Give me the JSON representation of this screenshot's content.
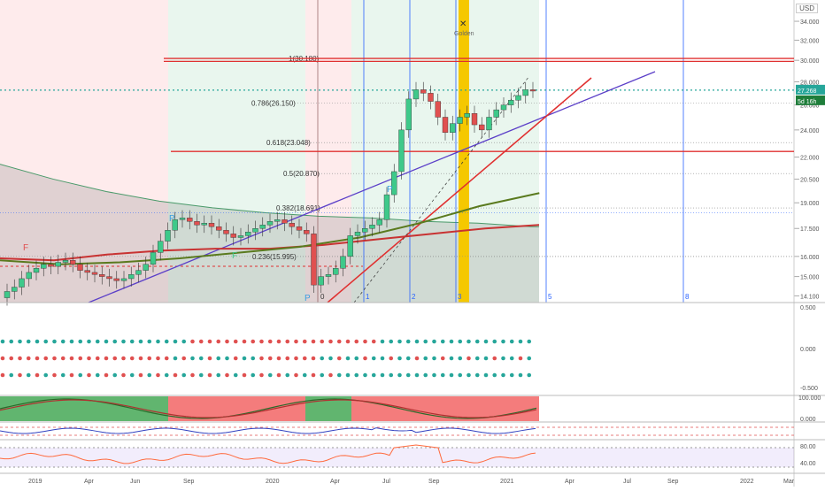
{
  "currency": "USD",
  "price_axis": {
    "ticks": [
      "34.000",
      "32.000",
      "30.000",
      "28.000",
      "26.000",
      "24.000",
      "22.000",
      "20.500",
      "19.000",
      "17.500",
      "16.000",
      "15.000",
      "14.100"
    ],
    "top_partial": "3"
  },
  "price_tags": {
    "last_price": "27.268",
    "countdown": "5d 16h",
    "colors": {
      "last": "#26a69a",
      "countdown": "#1e7d3a"
    }
  },
  "time_axis": [
    "2019",
    "Apr",
    "Jun",
    "Sep",
    "2020",
    "Apr",
    "Jul",
    "Sep",
    "2021",
    "Apr",
    "Jul",
    "Sep",
    "2022",
    "Mar"
  ],
  "fib_levels": [
    {
      "label": "1(30.180)"
    },
    {
      "label": "0.786(26.150)"
    },
    {
      "label": "0.618(23.048)"
    },
    {
      "label": "0.5(20.870)"
    },
    {
      "label": "0.382(18.691)"
    },
    {
      "label": "0.236(15.995)"
    }
  ],
  "annotations": {
    "golden_label": "Golden",
    "cross_symbol": "✕",
    "pivot_labels": [
      "P",
      "P",
      "P"
    ],
    "fractal_labels": [
      "F",
      "F"
    ],
    "cycle_numbers": [
      "0",
      "1",
      "2",
      "3",
      "5",
      "8"
    ]
  },
  "indicator_axes": {
    "dots_panel": [
      "0.500",
      "0.000",
      "-0.500"
    ],
    "stoch_panel": [
      "100.000",
      "0.000"
    ],
    "rsi_panel": [
      "80.00",
      "40.00"
    ]
  },
  "chart_data": {
    "type": "candlestick",
    "title": "",
    "ylabel": "USD",
    "ylim": [
      13.8,
      36.4
    ],
    "x_range_weeks": [
      0,
      160
    ],
    "scale": "log",
    "candles_closes": [
      14.3,
      14.5,
      14.9,
      15.2,
      15.4,
      15.6,
      15.5,
      15.7,
      15.8,
      15.6,
      15.3,
      15.2,
      15.1,
      15.0,
      14.9,
      14.8,
      14.9,
      15.1,
      15.3,
      15.6,
      16.2,
      16.8,
      17.4,
      18.0,
      18.1,
      17.9,
      17.7,
      17.8,
      17.6,
      17.4,
      17.2,
      17.0,
      17.1,
      17.3,
      17.5,
      17.7,
      17.9,
      18.0,
      17.8,
      17.6,
      17.4,
      17.2,
      14.6,
      15.0,
      15.1,
      15.4,
      16.0,
      17.1,
      17.3,
      17.5,
      17.7,
      18.0,
      19.5,
      21.0,
      24.0,
      26.5,
      27.3,
      27.0,
      26.3,
      25.0,
      23.8,
      24.5,
      25.0,
      25.3,
      24.4,
      24.0,
      25.0,
      25.6,
      26.0,
      26.4,
      26.8,
      27.3,
      27.268
    ],
    "moving_averages": {
      "ma_grey": [
        21.5,
        20.5,
        19.7,
        19.1,
        18.7,
        18.4,
        18.2,
        18.1,
        17.9,
        17.8,
        17.6
      ],
      "ma_red": [
        15.9,
        15.8,
        16.1,
        16.3,
        16.4,
        16.4,
        16.6,
        16.9,
        17.2,
        17.5,
        17.7
      ],
      "ma_olive": [
        15.8,
        15.6,
        15.7,
        15.9,
        16.2,
        16.5,
        17.0,
        17.8,
        18.8,
        19.6
      ]
    },
    "horizontal_levels": [
      {
        "name": "resistance",
        "value": 30.0
      },
      {
        "name": "support",
        "value": 22.4
      },
      {
        "name": "last_price",
        "value": 27.268
      },
      {
        "name": "support_dashed",
        "value": 15.5
      }
    ],
    "fibonacci": [
      30.18,
      26.15,
      23.048,
      20.87,
      18.691,
      15.995
    ],
    "colors": {
      "up": "#3ec98a",
      "down": "#e05050",
      "bg_red": "rgba(242,54,69,0.10)",
      "bg_green": "rgba(38,166,91,0.10)",
      "bg_grey": "rgba(120,120,120,0.22)",
      "golden": "#f5c800",
      "blue_line": "#2962ff",
      "red_line": "#e03030",
      "purple": "#5b3fc8"
    }
  }
}
